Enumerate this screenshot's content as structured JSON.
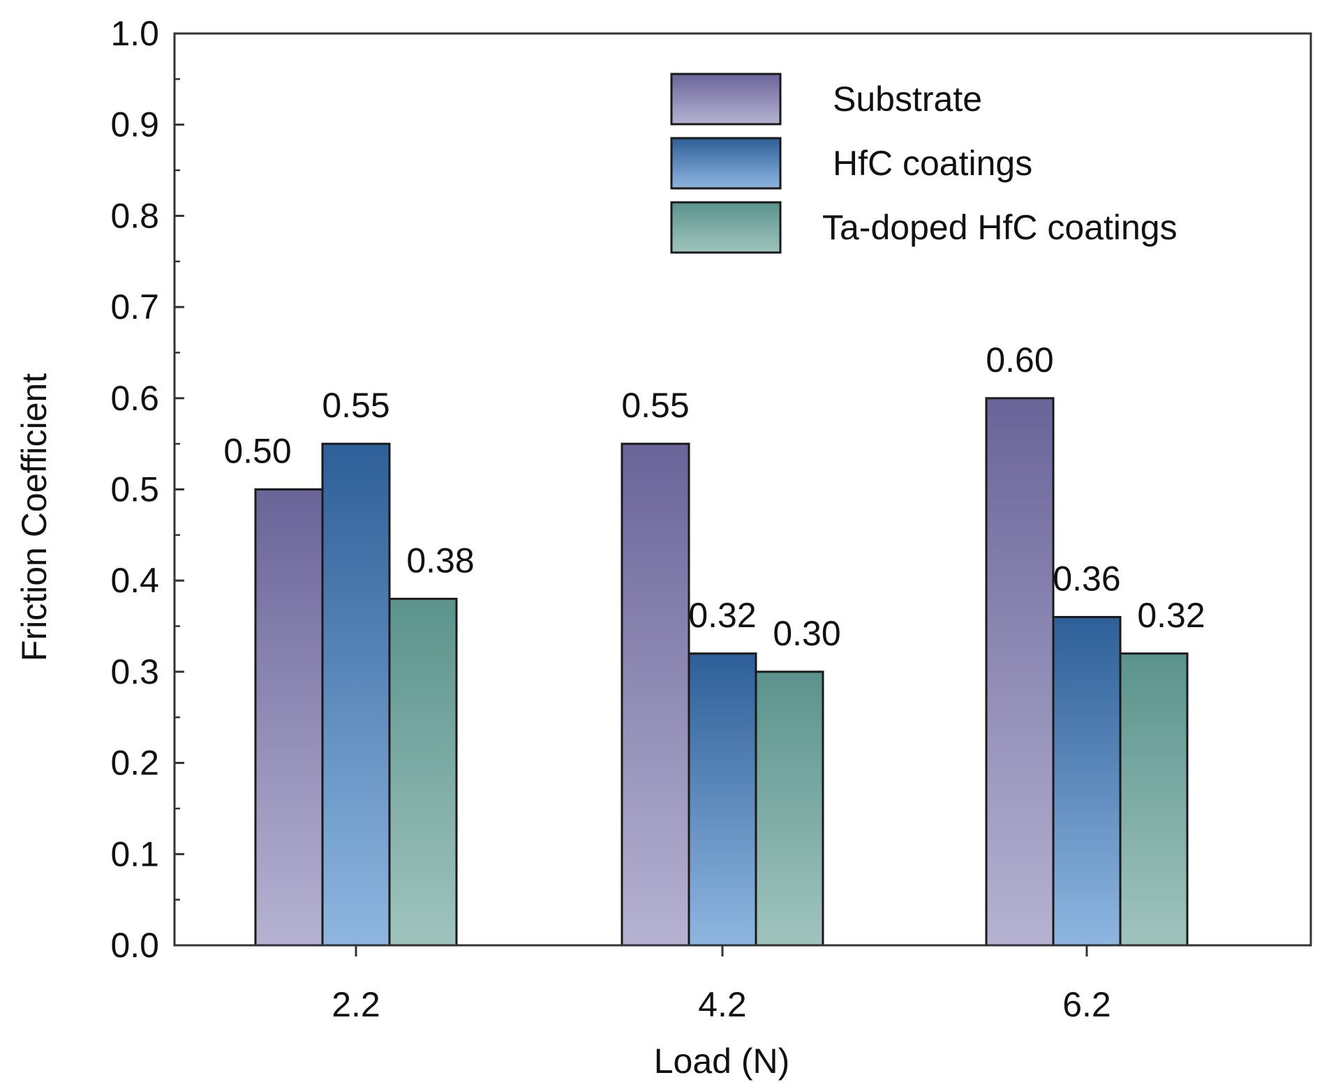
{
  "chart_data": {
    "type": "bar",
    "title": "",
    "xlabel": "Load (N)",
    "ylabel": "Friction Coefficient",
    "categories": [
      "2.2",
      "4.2",
      "6.2"
    ],
    "ylim": [
      0,
      1.0
    ],
    "yticks": [
      "0.0",
      "0.1",
      "0.2",
      "0.3",
      "0.4",
      "0.5",
      "0.6",
      "0.7",
      "0.8",
      "0.9",
      "1.0"
    ],
    "grid": false,
    "legend_position": "top-right",
    "series": [
      {
        "name": "Substrate",
        "values": [
          0.5,
          0.55,
          0.6
        ],
        "labels": [
          "0.50",
          "0.55",
          "0.60"
        ],
        "color_top": "#6a6599",
        "color_bottom": "#b6b2d2"
      },
      {
        "name": "HfC coatings",
        "values": [
          0.55,
          0.32,
          0.36
        ],
        "labels": [
          "0.55",
          "0.32",
          "0.36"
        ],
        "color_top": "#2e5f98",
        "color_bottom": "#8eb6e0"
      },
      {
        "name": "Ta-doped HfC coatings",
        "values": [
          0.38,
          0.3,
          0.32
        ],
        "labels": [
          "0.38",
          "0.30",
          "0.32"
        ],
        "color_top": "#5b938c",
        "color_bottom": "#9fc4bd"
      }
    ]
  }
}
